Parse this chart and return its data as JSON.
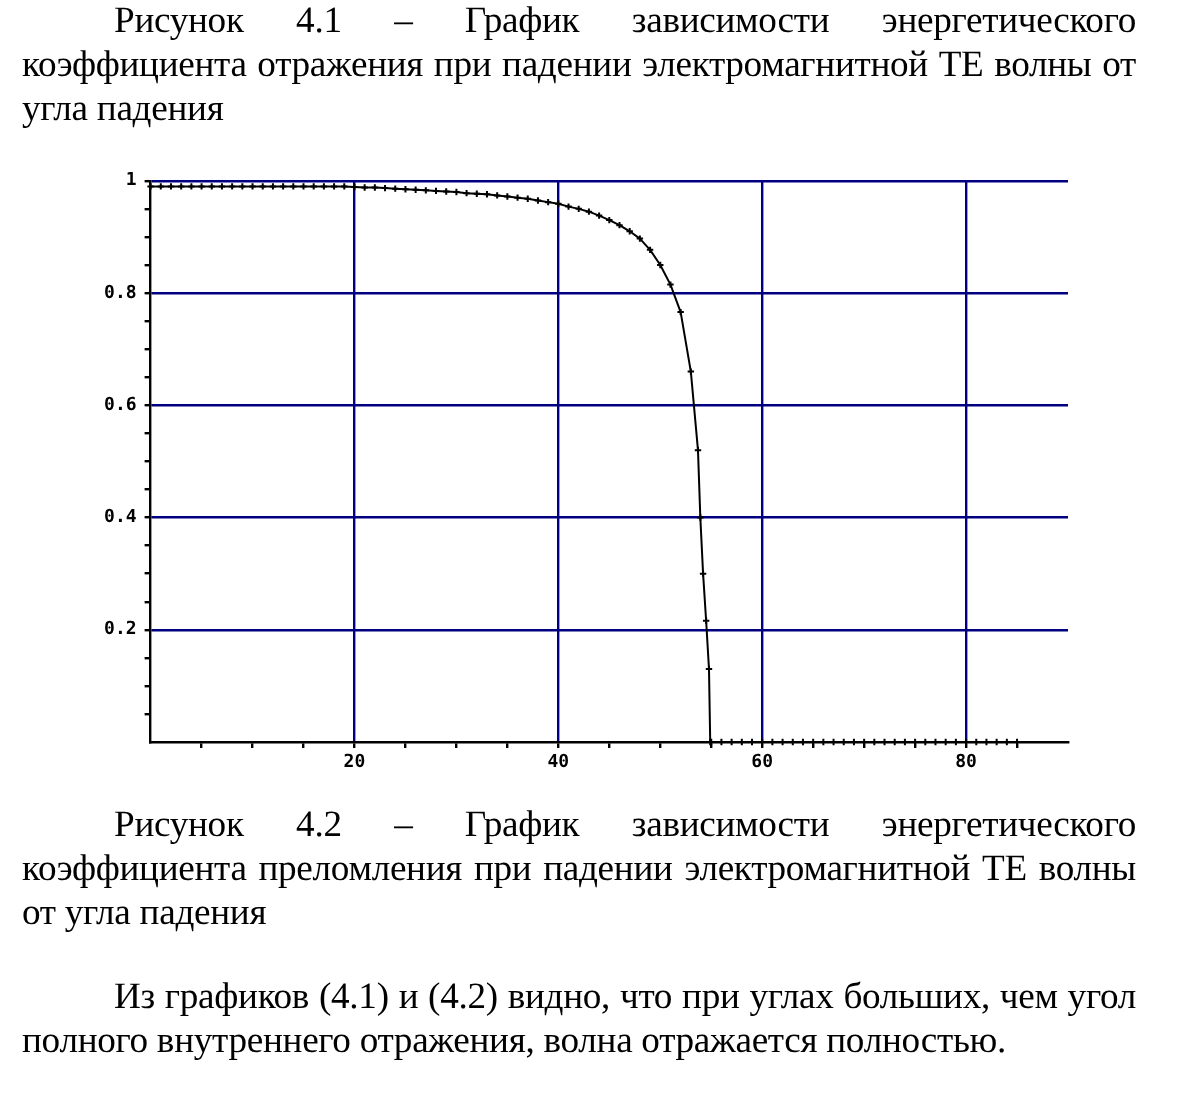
{
  "chart_data": {
    "type": "line",
    "title": "Рисунок 4.2 – График зависимости энергетического коэффициента преломления при падении электромагнитной ТЕ волны от угла падения",
    "annotations": [
      "Рисунок 4.1 – График зависимости энергетического коэффициента отражения при падении электромагнитной ТЕ волны от угла падения",
      "Из графиков (4.1) и (4.2) видно, что при углах больших, чем угол полного внутреннего отражения, волна отражается полностью."
    ],
    "x": [
      0,
      1,
      2,
      3,
      4,
      5,
      6,
      7,
      8,
      9,
      10,
      11,
      12,
      13,
      14,
      15,
      16,
      17,
      18,
      19,
      20,
      21,
      22,
      23,
      24,
      25,
      26,
      27,
      28,
      29,
      30,
      31,
      32,
      33,
      34,
      35,
      36,
      37,
      38,
      39,
      40,
      41,
      42,
      43,
      44,
      45,
      46,
      47,
      48,
      49,
      50,
      51,
      52,
      53,
      53.7,
      53.93,
      54.2,
      54.5,
      54.78,
      54.9,
      55,
      56,
      57,
      58,
      59,
      60,
      61,
      62,
      63,
      64,
      65,
      66,
      67,
      68,
      69,
      70,
      71,
      72,
      73,
      74,
      75,
      76,
      77,
      78,
      79,
      80,
      81,
      82,
      83,
      84,
      85
    ],
    "values": [
      0.99,
      0.99,
      0.99,
      0.99,
      0.99,
      0.99,
      0.99,
      0.99,
      0.99,
      0.99,
      0.99,
      0.99,
      0.99,
      0.99,
      0.99,
      0.99,
      0.99,
      0.99,
      0.99,
      0.99,
      0.989,
      0.988,
      0.988,
      0.987,
      0.986,
      0.985,
      0.984,
      0.983,
      0.982,
      0.981,
      0.98,
      0.978,
      0.977,
      0.976,
      0.974,
      0.972,
      0.97,
      0.968,
      0.965,
      0.962,
      0.959,
      0.954,
      0.95,
      0.945,
      0.938,
      0.93,
      0.921,
      0.91,
      0.897,
      0.877,
      0.85,
      0.815,
      0.766,
      0.66,
      0.52,
      0.4,
      0.3,
      0.216,
      0.13,
      0,
      0,
      0,
      0,
      0,
      0,
      0,
      0,
      0,
      0,
      0,
      0,
      0,
      0,
      0,
      0,
      0,
      0,
      0,
      0,
      0,
      0,
      0,
      0,
      0,
      0,
      0,
      0,
      0,
      0,
      0,
      0
    ],
    "color": "#000000",
    "marker": "cross",
    "grid": true,
    "xlim": [
      0,
      90
    ],
    "xticks": [
      {
        "value": 5,
        "label": null
      },
      {
        "value": 10,
        "label": null
      },
      {
        "value": 15,
        "label": null
      },
      20,
      {
        "value": 25,
        "label": null
      },
      {
        "value": 30,
        "label": null
      },
      {
        "value": 35,
        "label": null
      },
      40,
      {
        "value": 45,
        "label": null
      },
      {
        "value": 50,
        "label": null
      },
      {
        "value": 55,
        "label": null
      },
      60,
      {
        "value": 65,
        "label": null
      },
      {
        "value": 70,
        "label": null
      },
      {
        "value": 75,
        "label": null
      },
      80,
      {
        "value": 85,
        "label": null
      }
    ],
    "ylim": [
      0,
      1
    ],
    "yticks": [
      {
        "value": 0.05,
        "label": null
      },
      {
        "value": 0.1,
        "label": null
      },
      {
        "value": 0.15,
        "label": null
      },
      0.2,
      {
        "value": 0.25,
        "label": null
      },
      {
        "value": 0.3,
        "label": null
      },
      {
        "value": 0.35,
        "label": null
      },
      0.4,
      {
        "value": 0.45,
        "label": null
      },
      {
        "value": 0.5,
        "label": null
      },
      {
        "value": 0.55,
        "label": null
      },
      0.6,
      {
        "value": 0.65,
        "label": null
      },
      {
        "value": 0.7,
        "label": null
      },
      {
        "value": 0.75,
        "label": null
      },
      0.8,
      {
        "value": 0.85,
        "label": null
      },
      {
        "value": 0.9,
        "label": null
      },
      {
        "value": 0.95,
        "label": null
      },
      1
    ]
  }
}
